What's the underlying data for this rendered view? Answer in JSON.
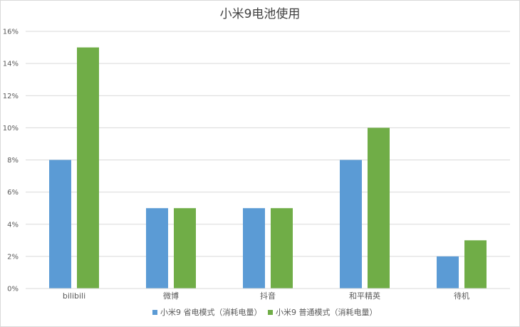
{
  "chart_data": {
    "type": "bar",
    "title": "小米9电池使用",
    "categories": [
      "bilibili",
      "微博",
      "抖音",
      "和平精英",
      "待机"
    ],
    "series": [
      {
        "name": "小米9 省电模式（消耗电量）",
        "color": "#5b9bd5",
        "values": [
          8,
          5,
          5,
          8,
          2
        ]
      },
      {
        "name": "小米9 普通模式（消耗电量）",
        "color": "#70ad47",
        "values": [
          15,
          5,
          5,
          10,
          3
        ]
      }
    ],
    "ylim": [
      0,
      16
    ],
    "yticks": [
      "0%",
      "2%",
      "4%",
      "6%",
      "8%",
      "10%",
      "12%",
      "14%",
      "16%"
    ],
    "ytick_values": [
      0,
      2,
      4,
      6,
      8,
      10,
      12,
      14,
      16
    ],
    "grid": true,
    "legend_position": "bottom"
  }
}
